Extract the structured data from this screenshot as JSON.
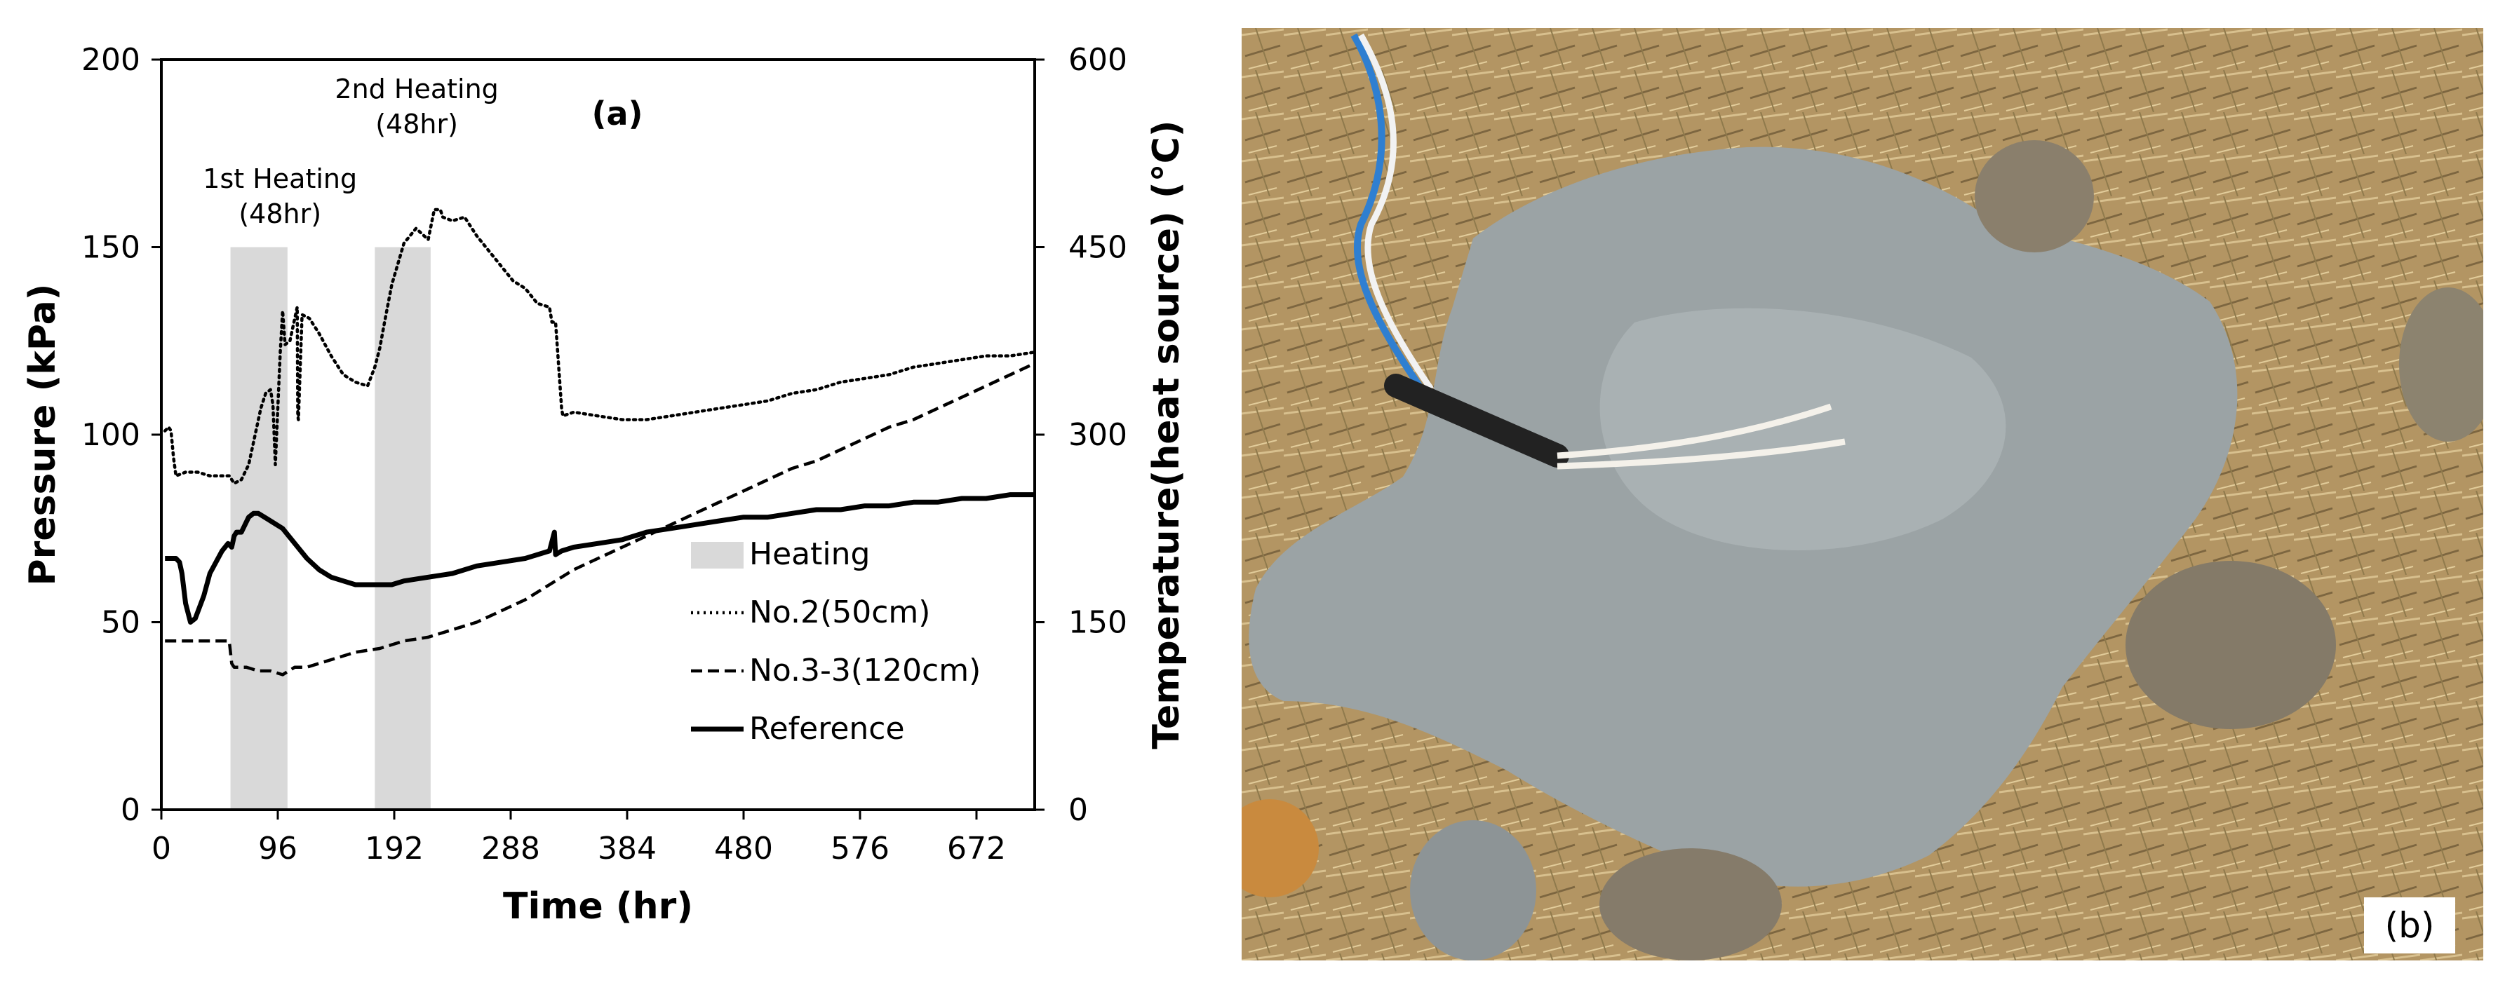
{
  "chart_data": {
    "type": "line",
    "panel_label": "(a)",
    "xlabel": "Time (hr)",
    "ylabel": "Pressure (kPa)",
    "y2label": "Temperature(heat source) (°C)",
    "xlim": [
      0,
      720
    ],
    "ylim": [
      0,
      200
    ],
    "y2lim": [
      0,
      600
    ],
    "xticks": [
      0,
      96,
      192,
      288,
      384,
      480,
      576,
      672
    ],
    "yticks": [
      0,
      50,
      100,
      150,
      200
    ],
    "y2ticks": [
      0,
      150,
      300,
      450,
      600
    ],
    "grid": false,
    "legend_position": "lower-right",
    "heating_periods": [
      {
        "name": "1st Heating",
        "duration": "(48hr)",
        "start": 57,
        "end": 104
      },
      {
        "name": "2nd Heating",
        "duration": "(48hr)",
        "start": 176,
        "end": 222
      }
    ],
    "heating_legend": "Heating",
    "series": [
      {
        "name": "No.2(50cm)",
        "style": "dotted",
        "x": [
          3,
          6,
          8,
          10,
          12,
          20,
          30,
          40,
          50,
          56,
          60,
          66,
          72,
          78,
          82,
          86,
          90,
          92,
          94,
          98,
          100,
          102,
          106,
          110,
          112,
          112.5,
          113,
          116,
          122,
          130,
          140,
          150,
          160,
          170,
          176,
          180,
          184,
          190,
          200,
          210,
          220,
          225,
          230,
          232,
          240,
          250,
          260,
          270,
          280,
          290,
          300,
          310,
          320,
          322,
          325,
          330,
          331,
          340,
          360,
          380,
          400,
          420,
          440,
          460,
          480,
          500,
          520,
          540,
          560,
          580,
          600,
          620,
          640,
          660,
          680,
          700,
          720
        ],
        "values": [
          101,
          102,
          101,
          94,
          89,
          90,
          90,
          89,
          89,
          89,
          87,
          88,
          92,
          101,
          107,
          111,
          112,
          108,
          92,
          122,
          133,
          124,
          125,
          131,
          134,
          105,
          104,
          132,
          131,
          127,
          121,
          116,
          114,
          113,
          118,
          123,
          130,
          140,
          151,
          155,
          152,
          160,
          160,
          158,
          157,
          158,
          153,
          149,
          145,
          141,
          139,
          135,
          134,
          130,
          130,
          107,
          105,
          106,
          105,
          104,
          104,
          105,
          106,
          107,
          108,
          109,
          111,
          112,
          114,
          115,
          116,
          118,
          119,
          120,
          121,
          121,
          122
        ]
      },
      {
        "name": "No.3-3(120cm)",
        "style": "dashed",
        "x": [
          3,
          20,
          40,
          56,
          58,
          60,
          70,
          80,
          90,
          100,
          110,
          120,
          140,
          160,
          180,
          200,
          220,
          240,
          260,
          280,
          300,
          320,
          340,
          360,
          380,
          400,
          420,
          440,
          460,
          480,
          500,
          520,
          540,
          560,
          580,
          600,
          620,
          640,
          660,
          680,
          700,
          720
        ],
        "values": [
          45,
          45,
          45,
          45,
          39,
          38,
          38,
          37,
          37,
          36,
          38,
          38,
          40,
          42,
          43,
          45,
          46,
          48,
          50,
          53,
          56,
          60,
          64,
          67,
          70,
          73,
          76,
          79,
          82,
          85,
          88,
          91,
          93,
          96,
          99,
          102,
          104,
          107,
          110,
          113,
          116,
          119
        ]
      },
      {
        "name": "Reference",
        "style": "solid",
        "x": [
          3,
          12,
          15,
          17,
          20,
          24,
          28,
          35,
          40,
          50,
          55,
          58,
          60,
          62,
          66,
          72,
          76,
          80,
          90,
          100,
          110,
          120,
          130,
          140,
          150,
          160,
          170,
          180,
          190,
          200,
          220,
          240,
          260,
          280,
          300,
          320,
          324,
          325,
          330,
          340,
          360,
          380,
          400,
          420,
          440,
          460,
          480,
          500,
          520,
          540,
          560,
          580,
          600,
          620,
          640,
          660,
          680,
          700,
          720
        ],
        "values": [
          67,
          67,
          66,
          63,
          55,
          50,
          51,
          57,
          63,
          69,
          71,
          70,
          73,
          74,
          74,
          78,
          79,
          79,
          77,
          75,
          71,
          67,
          64,
          62,
          61,
          60,
          60,
          60,
          60,
          61,
          62,
          63,
          65,
          66,
          67,
          69,
          74,
          68,
          69,
          70,
          71,
          72,
          74,
          75,
          76,
          77,
          78,
          78,
          79,
          80,
          80,
          81,
          81,
          82,
          82,
          83,
          83,
          84,
          84
        ]
      }
    ]
  },
  "photo": {
    "description_label": "(b)"
  },
  "colors": {
    "heating_fill": "#d9d9d9",
    "line": "#000000",
    "grass": "#b89a66",
    "mud": "#9aa3a6"
  }
}
